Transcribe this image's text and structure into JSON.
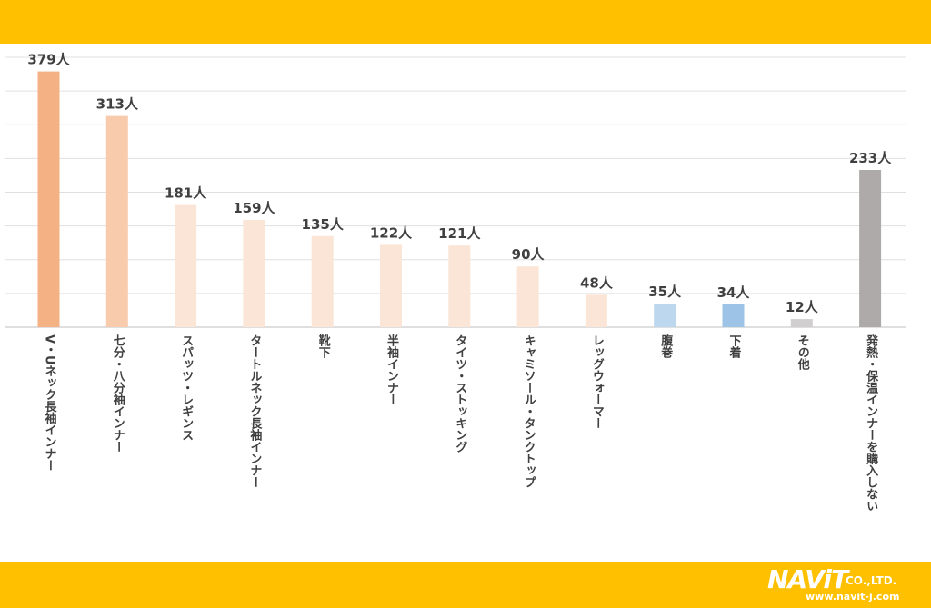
{
  "chart_data": {
    "type": "bar",
    "title": "",
    "xlabel": "",
    "ylabel": "",
    "ylim": [
      0,
      400
    ],
    "grid": true,
    "unit": "人",
    "categories": [
      "V・Uネック長袖インナー",
      "七分・八分袖インナー",
      "スパッツ・レギンス",
      "タートルネック長袖インナー",
      "靴下",
      "半袖インナー",
      "タイツ・ストッキング",
      "キャミソール・タンクトップ",
      "レッグウォーマー",
      "腹巻",
      "下着",
      "その他",
      "発熱・保温インナーを購入しない"
    ],
    "values": [
      379,
      313,
      181,
      159,
      135,
      122,
      121,
      90,
      48,
      35,
      34,
      12,
      233
    ],
    "value_labels": [
      "379人",
      "313人",
      "181人",
      "159人",
      "135人",
      "122人",
      "121人",
      "90人",
      "48人",
      "35人",
      "34人",
      "12人",
      "233人"
    ],
    "colors": [
      "#f4b183",
      "#f8cbad",
      "#fbe5d6",
      "#fbe5d6",
      "#fbe5d6",
      "#fbe5d6",
      "#fbe5d6",
      "#fbe5d6",
      "#fbe5d6",
      "#bdd7ee",
      "#9dc3e6",
      "#d0cece",
      "#aeaaaa"
    ]
  },
  "logo": {
    "main": "NAViT",
    "suffix": "CO.,LTD.",
    "url": "www.navit-j.com"
  }
}
